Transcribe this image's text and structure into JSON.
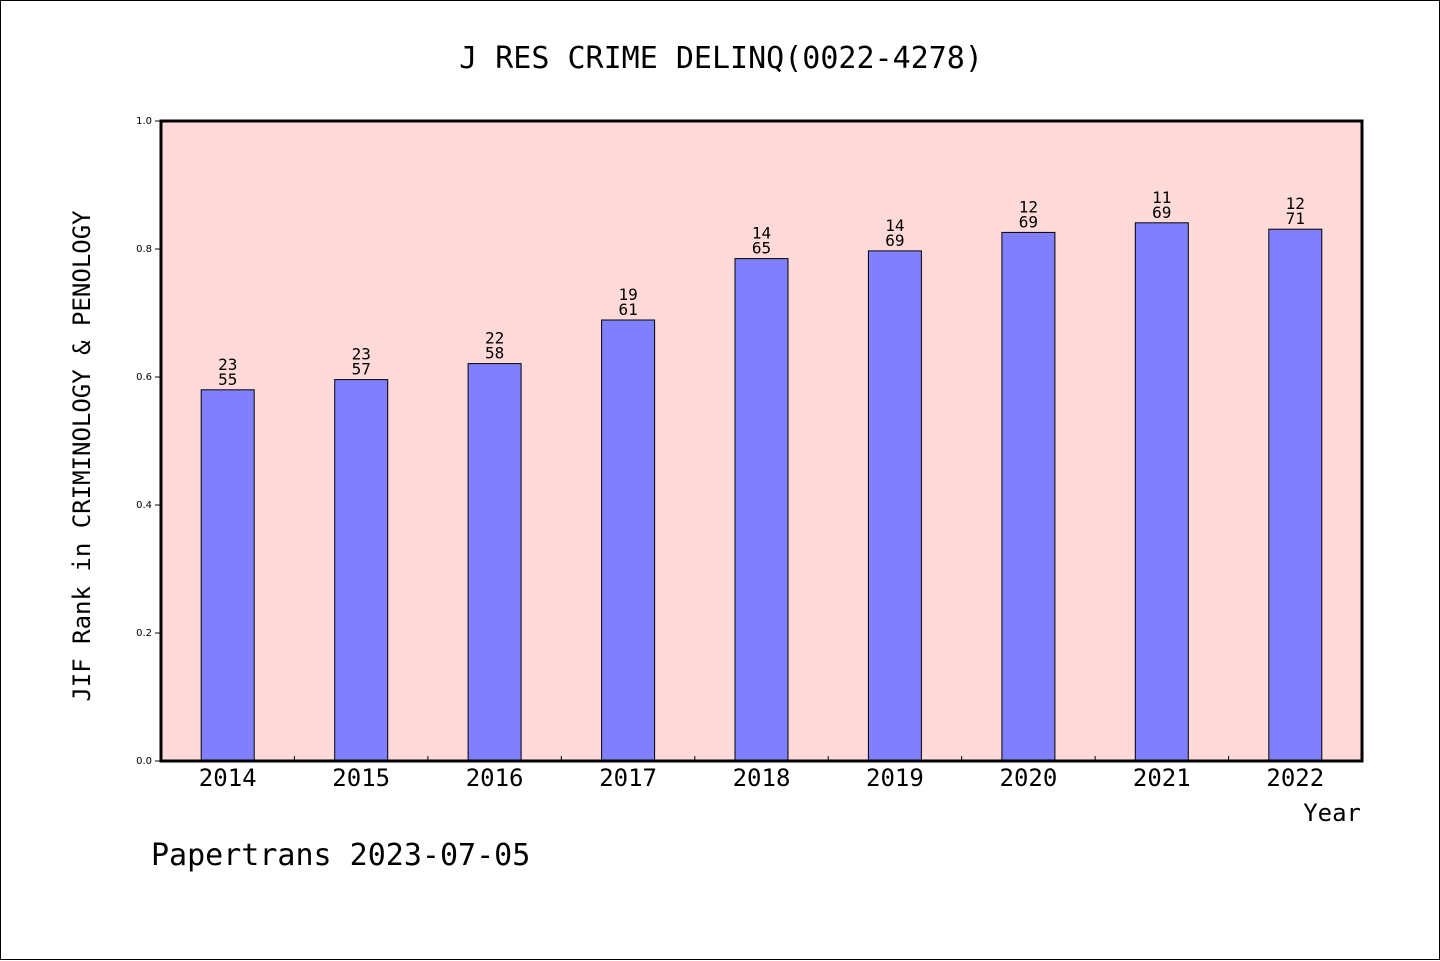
{
  "chart_data": {
    "type": "bar",
    "title": "J RES CRIME DELINQ(0022-4278)",
    "xlabel": "Year",
    "ylabel": "JIF Rank in CRIMINOLOGY & PENOLOGY",
    "ylim": [
      0,
      1.0
    ],
    "yticks": [
      "0.0",
      "0.2",
      "0.4",
      "0.6",
      "0.8",
      "1.0"
    ],
    "categories": [
      "2014",
      "2015",
      "2016",
      "2017",
      "2018",
      "2019",
      "2020",
      "2021",
      "2022"
    ],
    "values": [
      0.58,
      0.596,
      0.621,
      0.689,
      0.785,
      0.797,
      0.826,
      0.841,
      0.831
    ],
    "ranks": [
      "23",
      "23",
      "22",
      "19",
      "14",
      "14",
      "12",
      "11",
      "12"
    ],
    "totals": [
      "55",
      "57",
      "58",
      "61",
      "65",
      "69",
      "69",
      "69",
      "71"
    ],
    "grid": false,
    "colors": {
      "plot_bg": "#ffdad8",
      "bar": "#8080ff",
      "axis": "#000000"
    }
  },
  "footer": {
    "watermark": "Papertrans 2023-07-05"
  }
}
